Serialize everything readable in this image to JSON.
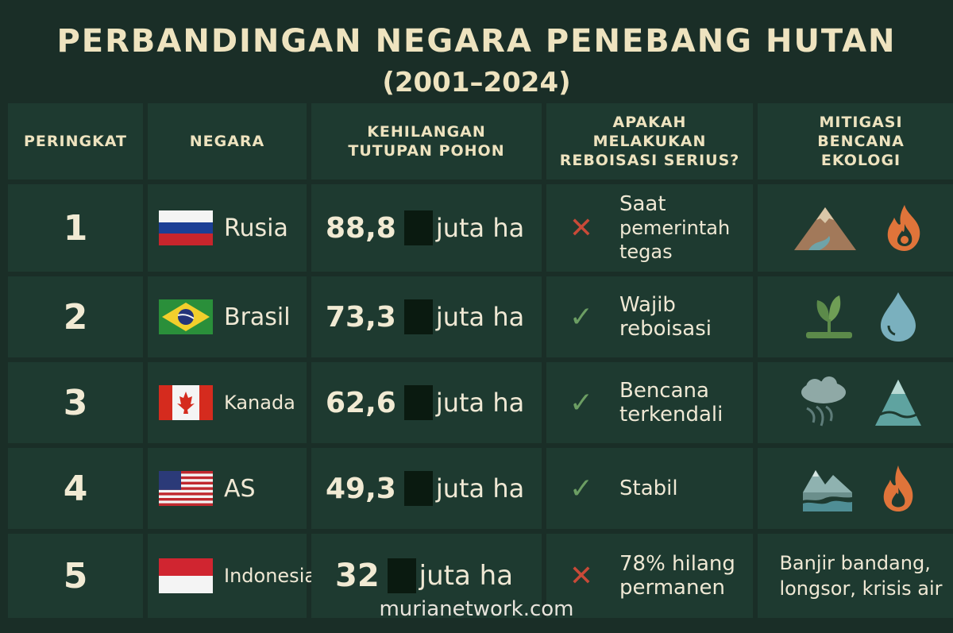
{
  "title": "PERBANDINGAN NEGARA PENEBANG HUTAN",
  "subtitle": "(2001–2024)",
  "headers": {
    "rank": "PERINGKAT",
    "country": "NEGARA",
    "loss_line1": "KEHILANGAN",
    "loss_line2": "TUTUPAN POHON",
    "reb_line1": "APAKAH",
    "reb_line2": "MELAKUKAN",
    "reb_line3": "REBOISASI SERIUS?",
    "mit_line1": "MITIGASI",
    "mit_line2": "BENCANA",
    "mit_line3": "EKOLOGI"
  },
  "rows": [
    {
      "rank": "1",
      "country": "Rusia",
      "flag": "russia-flag",
      "loss": "88,8",
      "unit": "juta ha",
      "mark": "✕",
      "mark_icon": "cross-icon",
      "reb_line1": "Saat",
      "reb_line2": "pemerintah",
      "reb_line3": "tegas",
      "mit_icons": [
        "mountain-icon",
        "fire-icon"
      ]
    },
    {
      "rank": "2",
      "country": "Brasil",
      "flag": "brazil-flag",
      "loss": "73,3",
      "unit": "juta ha",
      "mark": "✓",
      "mark_icon": "check-icon",
      "reb_line1": "Wajib",
      "reb_line2": "reboisasi",
      "mit_icons": [
        "sprout-icon",
        "water-drop-icon"
      ]
    },
    {
      "rank": "3",
      "country": "Kanada",
      "flag": "canada-flag",
      "loss": "62,6",
      "unit": "juta ha",
      "mark": "✓",
      "mark_icon": "check-icon",
      "reb_line1": "Bencana",
      "reb_line2": "terkendali",
      "mit_icons": [
        "storm-cloud-icon",
        "water-pyramid-icon"
      ]
    },
    {
      "rank": "4",
      "country": "AS",
      "flag": "usa-flag",
      "loss": "49,3",
      "unit": "juta ha",
      "mark": "✓",
      "mark_icon": "check-icon",
      "reb_line1": "Stabil",
      "mit_icons": [
        "flood-landscape-icon",
        "fire-icon"
      ]
    },
    {
      "rank": "5",
      "country": "Indonesia",
      "flag": "indonesia-flag",
      "loss": "32",
      "unit": "juta ha",
      "mark": "✕",
      "mark_icon": "cross-icon",
      "reb_line1": "78% hilang",
      "reb_line2": "permanen",
      "mit_line1": "Banjir bandang,",
      "mit_line2": "longsor, krisis air"
    }
  ],
  "footer": "murianetwork.com",
  "colors": {
    "background": "#1a2e27",
    "cell": "#1e3a30",
    "title": "#eee3bf",
    "cross": "#c94a38",
    "check": "#6c9e63"
  }
}
